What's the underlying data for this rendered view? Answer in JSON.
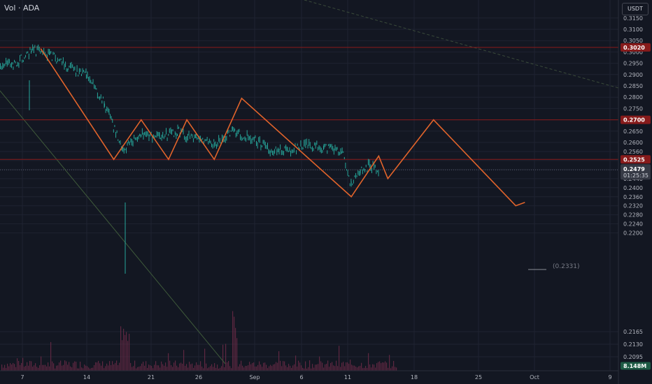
{
  "header": {
    "title": "Vol · ADA",
    "currency_button": "USDT"
  },
  "colors": {
    "background": "#131722",
    "grid": "#1f2331",
    "candle": "#26a69a",
    "resistance": "#8b1a1a",
    "label_red": "#871b1b",
    "pattern": "#e2642b",
    "trend": "#3f5a3b",
    "volume": "#6b2a46",
    "price_label": "#363a45",
    "volume_label": "#1e5b45"
  },
  "chart_data": {
    "type": "line",
    "title": "",
    "xlabel": "",
    "ylabel": "",
    "ylim": [
      0.2055,
      0.3195
    ],
    "x_ticks": [
      "7",
      "14",
      "21",
      "26",
      "Sep",
      "6",
      "11",
      "18",
      "25",
      "Oct",
      "9"
    ],
    "y_ticks": [
      "0.3150",
      "0.3100",
      "0.3050",
      "0.3000",
      "0.2950",
      "0.2900",
      "0.2850",
      "0.2800",
      "0.2750",
      "0.2700",
      "0.2650",
      "0.2600",
      "0.2560",
      "0.2520",
      "0.2480",
      "0.2440",
      "0.2400",
      "0.2360",
      "0.2320",
      "0.2280",
      "0.2240",
      "0.2200",
      "0.2165",
      "0.2130",
      "0.2095"
    ],
    "horizontal_levels": [
      {
        "value": 0.302,
        "label": "0.3020"
      },
      {
        "value": 0.27,
        "label": "0.2700"
      },
      {
        "value": 0.2525,
        "label": "0.2525"
      }
    ],
    "last_price": {
      "value": 0.2479,
      "label": "0.2479",
      "countdown": "01:25:35"
    },
    "volume_label": "8.148M",
    "target_label": "(0.2331)",
    "price_series": {
      "name": "",
      "x": [
        "Aug 3",
        "Aug 6",
        "Aug 8",
        "Aug 10",
        "Aug 12",
        "Aug 14",
        "Aug 16",
        "Aug 18",
        "Aug 20",
        "Aug 22",
        "Aug 24",
        "Aug 26",
        "Aug 28",
        "Aug 30",
        "Sep 1",
        "Sep 3",
        "Sep 5",
        "Sep 7",
        "Sep 9",
        "Sep 11",
        "Sep 12",
        "Sep 13",
        "Sep 14",
        "Sep 15"
      ],
      "y": [
        0.296,
        0.294,
        0.301,
        0.299,
        0.293,
        0.29,
        0.277,
        0.256,
        0.264,
        0.262,
        0.265,
        0.261,
        0.259,
        0.265,
        0.262,
        0.257,
        0.256,
        0.2585,
        0.258,
        0.256,
        0.241,
        0.247,
        0.25,
        0.2479
      ]
    },
    "zigzag_pattern": {
      "name": "",
      "x": [
        "Aug 9",
        "Aug 17",
        "Aug 20",
        "Aug 23",
        "Aug 25",
        "Aug 28",
        "Aug 31",
        "Sep 12",
        "Sep 15",
        "Sep 16",
        "Sep 21",
        "Sep 30",
        "Oct 1"
      ],
      "y": [
        0.3015,
        0.2525,
        0.27,
        0.2525,
        0.27,
        0.2525,
        0.2795,
        0.236,
        0.254,
        0.244,
        0.27,
        0.232,
        0.2335
      ]
    }
  }
}
